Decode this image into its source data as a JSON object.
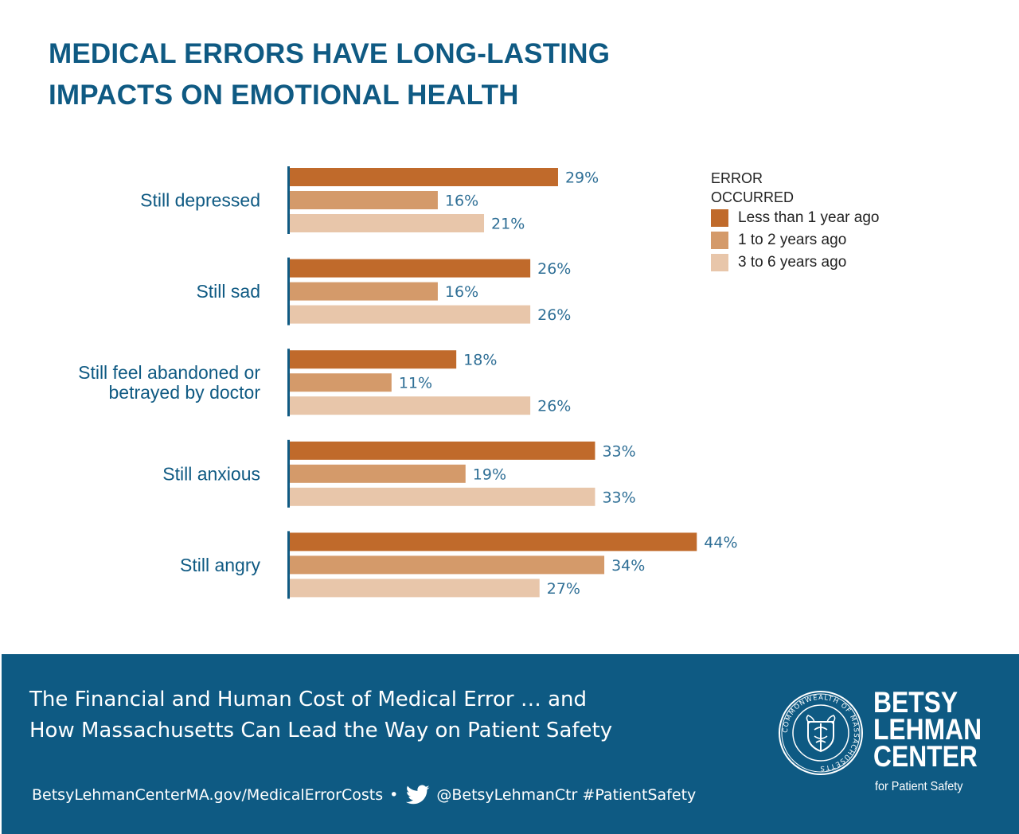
{
  "title_lines": [
    "MEDICAL ERRORS HAVE LONG-LASTING",
    "IMPACTS ON EMOTIONAL HEALTH"
  ],
  "chart_data": {
    "type": "bar",
    "orientation": "horizontal",
    "title": "MEDICAL ERRORS HAVE LONG-LASTING IMPACTS ON EMOTIONAL HEALTH",
    "categories": [
      [
        "Still depressed"
      ],
      [
        "Still sad"
      ],
      [
        "Still feel abandoned or",
        "betrayed by doctor"
      ],
      [
        "Still anxious"
      ],
      [
        "Still angry"
      ]
    ],
    "series": [
      {
        "name": "Less than 1 year ago",
        "color": "#c06a2b",
        "values": [
          29,
          26,
          18,
          33,
          44
        ],
        "labels": [
          "29%",
          "26%",
          "18%",
          "33%",
          "44%"
        ]
      },
      {
        "name": "1 to 2 years ago",
        "color": "#d49a6a",
        "values": [
          16,
          16,
          11,
          19,
          34
        ],
        "labels": [
          "16%",
          "16%",
          "11%",
          "19%",
          "34%"
        ]
      },
      {
        "name": "3 to 6 years ago",
        "color": "#e8c6aa",
        "values": [
          21,
          26,
          26,
          33,
          27
        ],
        "labels": [
          "21%",
          "26%",
          "26%",
          "33%",
          "27%"
        ]
      }
    ],
    "xlim": [
      0,
      50
    ],
    "unit": "%",
    "legend_title": [
      "ERROR",
      "OCCURRED"
    ],
    "legend_position": "top-right",
    "grid": false
  },
  "footer": {
    "subtitle_line1": "The Financial and Human Cost of Medical Error … and",
    "subtitle_line2": "How Massachusetts Can Lead the Way on Patient Safety",
    "website": "BetsyLehmanCenterMA.gov/MedicalErrorCosts",
    "separator": "•",
    "twitter": "@BetsyLehmanCtr #PatientSafety",
    "org_line1": "BETSY",
    "org_line2": "LEHMAN",
    "org_line3": "CENTER",
    "org_sub": "for Patient Safety",
    "seal_text": "COMMONWEALTH OF MASSACHUSETTS"
  },
  "colors": {
    "title": "#0f5a83",
    "footer_bg": "#0e5a83",
    "axis": "#0f5a83"
  }
}
